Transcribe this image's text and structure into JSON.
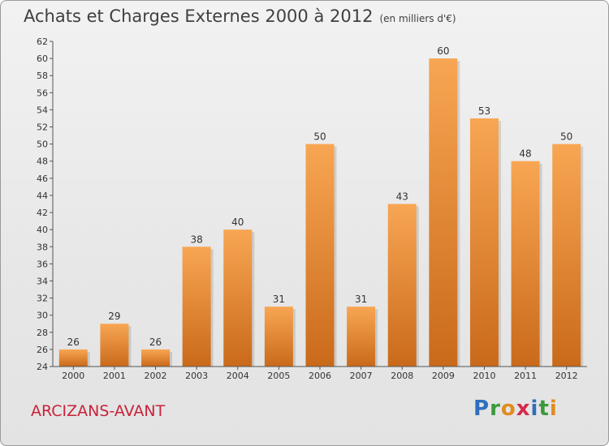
{
  "header": {
    "title": "Achats et Charges Externes 2000 à 2012",
    "subtitle": "(en milliers d'€)"
  },
  "footer": {
    "place": "ARCIZANS-AVANT",
    "logo_letters": [
      "P",
      "r",
      "o",
      "x",
      "i",
      "t",
      "i"
    ],
    "logo_colors": [
      "#2e6fbe",
      "#3b9a3b",
      "#e28b1e",
      "#d42a4a",
      "#2e6fbe",
      "#3b9a3b",
      "#e28b1e"
    ]
  },
  "chart_data": {
    "type": "bar",
    "title": "Achats et Charges Externes 2000 à 2012",
    "subtitle": "(en milliers d'€)",
    "categories": [
      "2000",
      "2001",
      "2002",
      "2003",
      "2004",
      "2005",
      "2006",
      "2007",
      "2008",
      "2009",
      "2010",
      "2011",
      "2012"
    ],
    "values": [
      26,
      29,
      26,
      38,
      40,
      31,
      50,
      31,
      43,
      60,
      53,
      48,
      50
    ],
    "ylim": [
      24,
      62
    ],
    "yticks": [
      24,
      26,
      28,
      30,
      32,
      34,
      36,
      38,
      40,
      42,
      44,
      46,
      48,
      50,
      52,
      54,
      56,
      58,
      60,
      62
    ],
    "grid": false,
    "colors": {
      "bar_top": "#f8a653",
      "bar_bottom": "#c96a1a",
      "axis": "#555555",
      "label": "#333333"
    }
  }
}
